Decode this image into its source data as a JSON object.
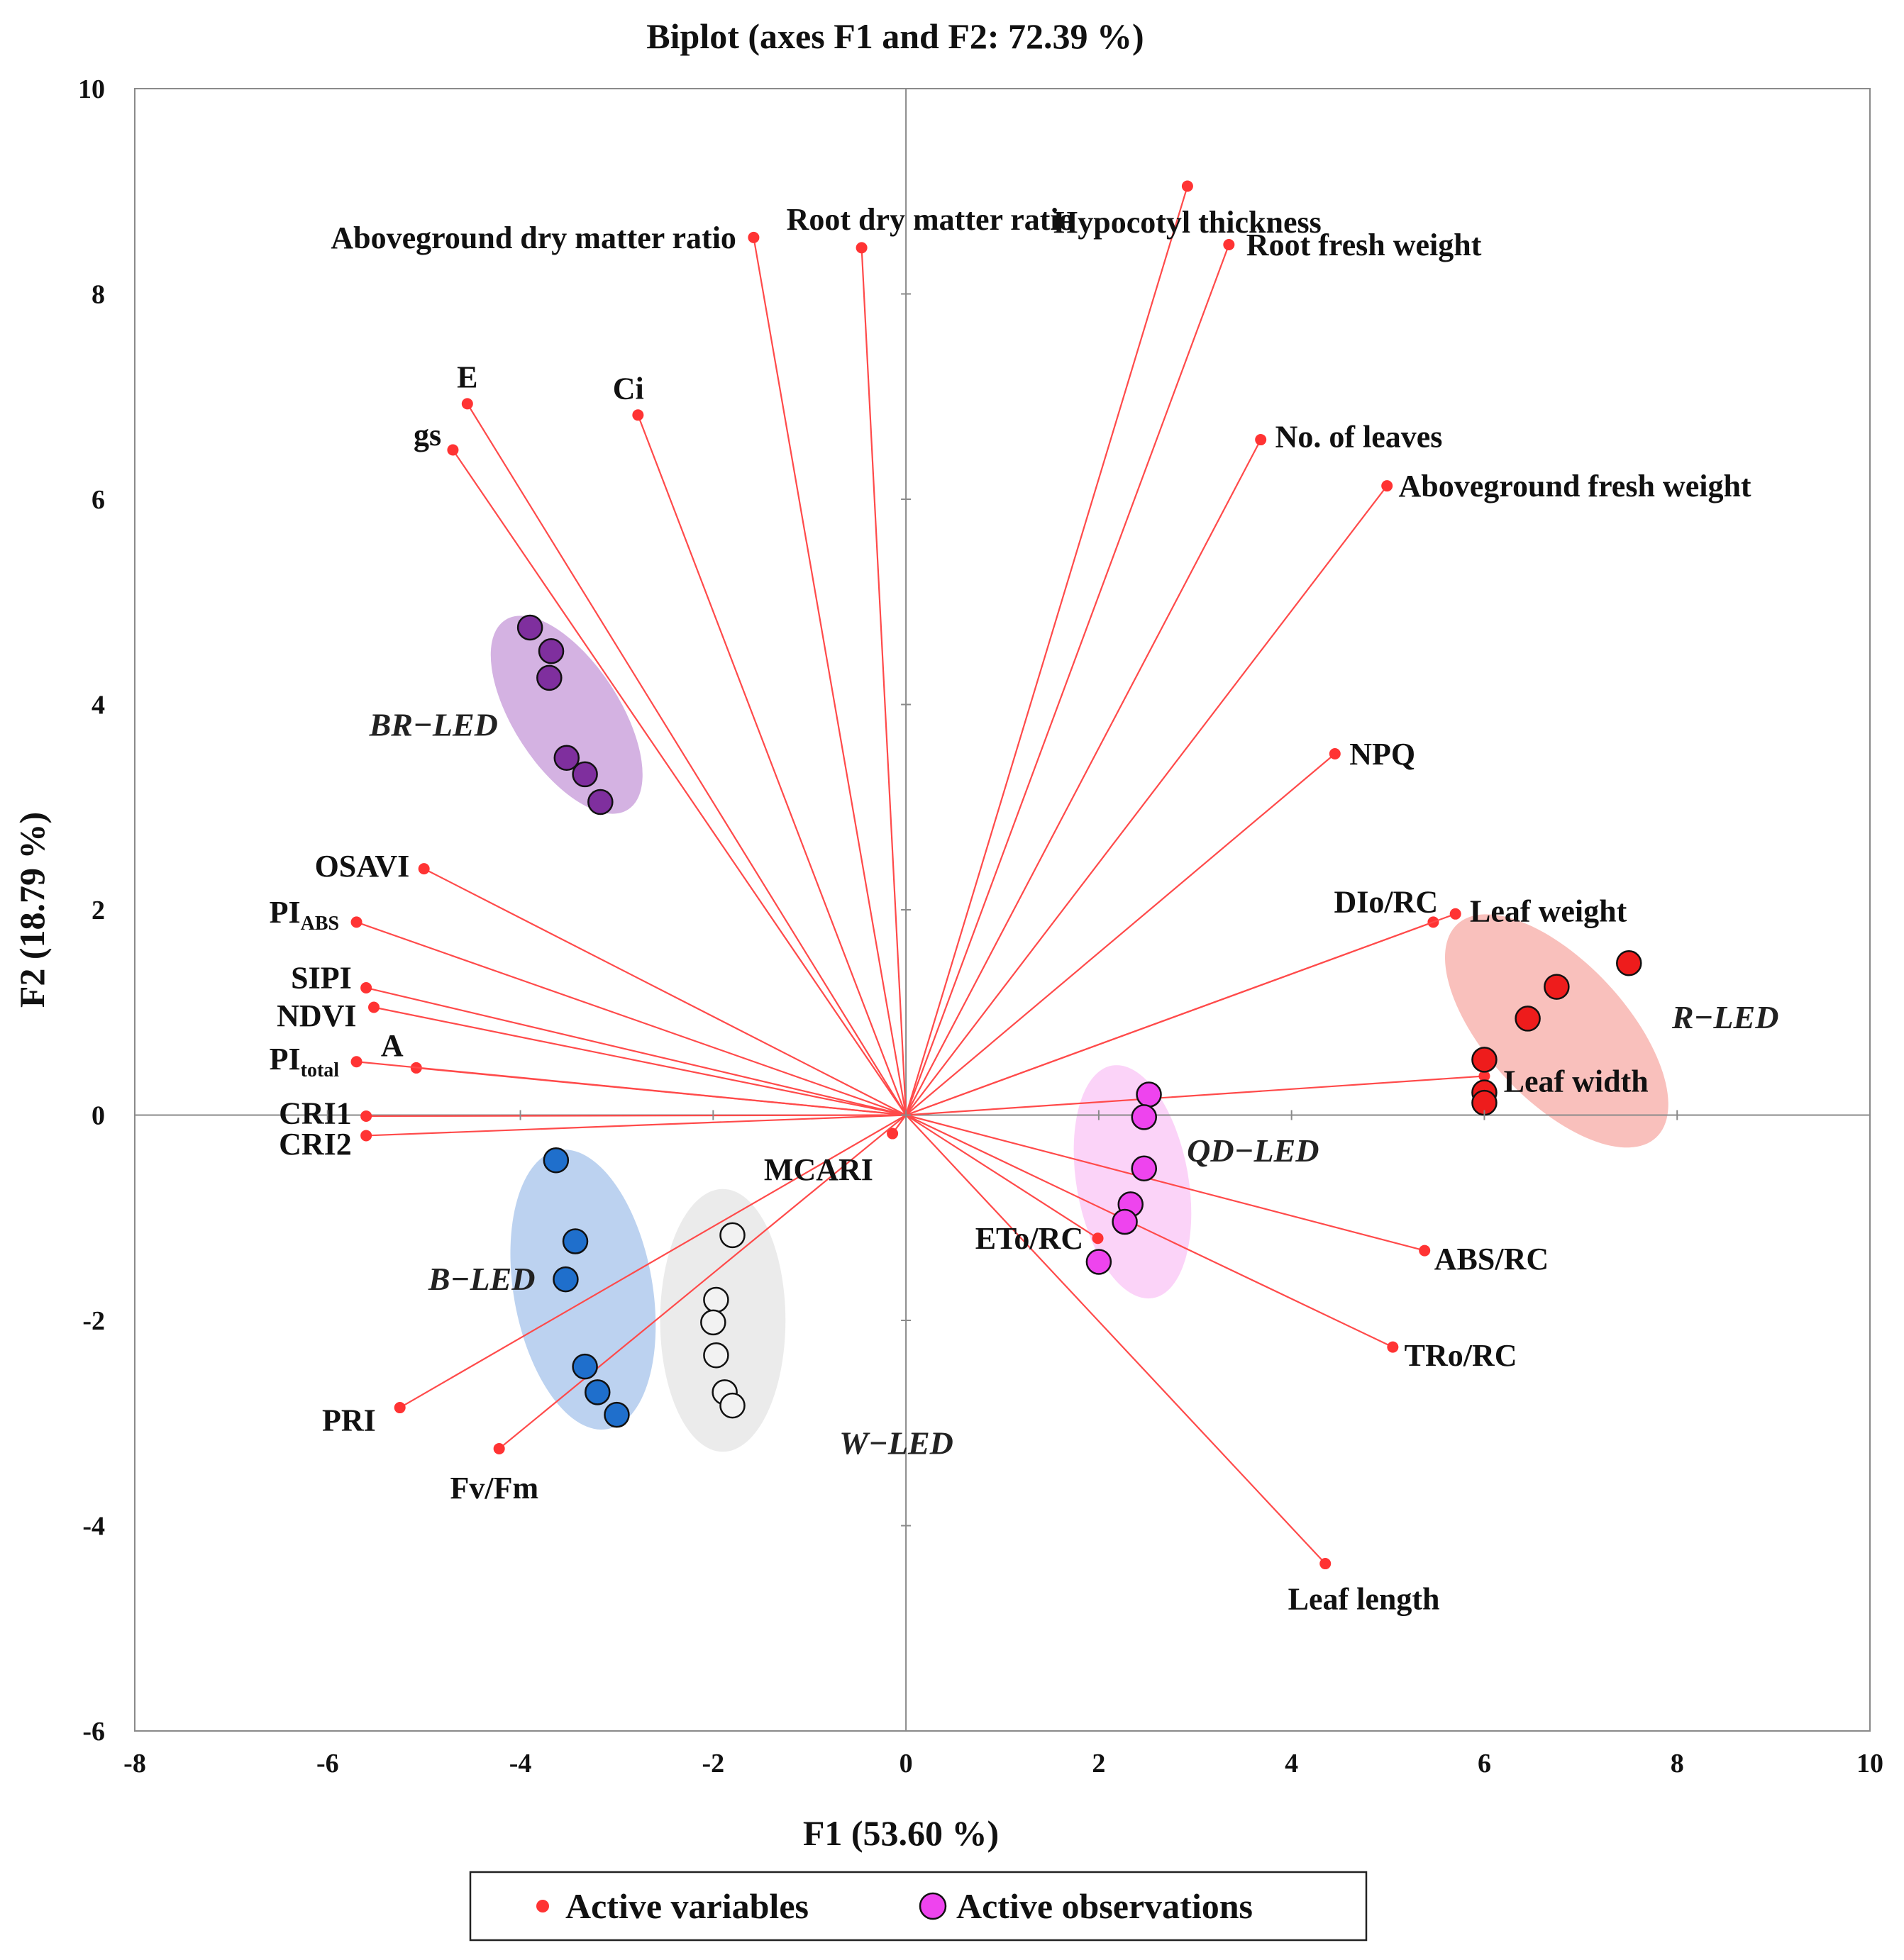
{
  "chart_data": {
    "type": "scatter",
    "subtype": "biplot",
    "title": "Biplot (axes F1 and F2: 72.39 %)",
    "xlabel": "F1 (53.60 %)",
    "ylabel": "F2 (18.79 %)",
    "xlim": [
      -8,
      10
    ],
    "ylim": [
      -6,
      10
    ],
    "xticks": [
      -8,
      -6,
      -4,
      -2,
      0,
      2,
      4,
      6,
      8,
      10
    ],
    "yticks": [
      -6,
      -4,
      -2,
      0,
      2,
      4,
      6,
      8,
      10
    ],
    "xtick_labels": [
      "-8",
      "-6",
      "-4",
      "-2",
      "0",
      "2",
      "4",
      "6",
      "8",
      "10"
    ],
    "ytick_labels": [
      "-6",
      "-4",
      "-2",
      "0",
      "2",
      "4",
      "6",
      "8",
      "10"
    ],
    "legend": {
      "position": "bottom-center",
      "items": [
        {
          "label": "Active variables",
          "marker": "dot",
          "color": "#ff3333"
        },
        {
          "label": "Active observations",
          "marker": "circle",
          "color": "#ee44ee"
        }
      ]
    },
    "variable_color": "#ff3333",
    "variables": [
      {
        "name": "Hypocotyl thickness",
        "x": 2.92,
        "y": 9.05,
        "anchor": "middle",
        "dx": 0,
        "dy": -0.35
      },
      {
        "name": "Root fresh weight",
        "x": 3.35,
        "y": 8.48,
        "anchor": "start",
        "dx": 0.18,
        "dy": 0
      },
      {
        "name": "Root dry matter ratio",
        "x": -0.46,
        "y": 8.45,
        "anchor": "start",
        "dx": -0.78,
        "dy": 0.28
      },
      {
        "name": "Aboveground dry matter ratio",
        "x": -1.58,
        "y": 8.55,
        "anchor": "end",
        "dx": -0.18,
        "dy": 0
      },
      {
        "name": "E",
        "x": -4.55,
        "y": 6.93,
        "anchor": "middle",
        "dx": 0,
        "dy": 0.26
      },
      {
        "name": "Ci",
        "x": -2.78,
        "y": 6.82,
        "anchor": "middle",
        "dx": -0.1,
        "dy": 0.26
      },
      {
        "name": "gs",
        "x": -4.7,
        "y": 6.48,
        "anchor": "end",
        "dx": -0.12,
        "dy": 0.15
      },
      {
        "name": "No. of leaves",
        "x": 3.68,
        "y": 6.58,
        "anchor": "start",
        "dx": 0.15,
        "dy": 0.03
      },
      {
        "name": "Aboveground fresh weight",
        "x": 4.99,
        "y": 6.13,
        "anchor": "start",
        "dx": 0.12,
        "dy": 0
      },
      {
        "name": "NPQ",
        "x": 4.45,
        "y": 3.52,
        "anchor": "start",
        "dx": 0.15,
        "dy": 0
      },
      {
        "name": "OSAVI",
        "x": -5.0,
        "y": 2.4,
        "anchor": "end",
        "dx": -0.15,
        "dy": 0.03
      },
      {
        "name": "PI",
        "sub": "ABS",
        "x": -5.7,
        "y": 1.88,
        "anchor": "end",
        "dx": -0.18,
        "dy": 0.1
      },
      {
        "name": "DIo/RC",
        "x": 5.47,
        "y": 1.88,
        "anchor": "end",
        "dx": 0.05,
        "dy": 0.2
      },
      {
        "name": "Leaf weight",
        "x": 5.7,
        "y": 1.96,
        "anchor": "start",
        "dx": 0.15,
        "dy": 0.03
      },
      {
        "name": "SIPI",
        "x": -5.6,
        "y": 1.24,
        "anchor": "end",
        "dx": -0.15,
        "dy": 0.1
      },
      {
        "name": "NDVI",
        "x": -5.52,
        "y": 1.05,
        "anchor": "end",
        "dx": -0.18,
        "dy": -0.08
      },
      {
        "name": "A",
        "x": -5.08,
        "y": 0.46,
        "anchor": "middle",
        "dx": -0.25,
        "dy": 0.22
      },
      {
        "name": "PI",
        "sub": "total",
        "x": -5.7,
        "y": 0.52,
        "anchor": "end",
        "dx": -0.18,
        "dy": 0.03
      },
      {
        "name": "Leaf width",
        "x": 6.0,
        "y": 0.38,
        "anchor": "start",
        "dx": 0.2,
        "dy": -0.05
      },
      {
        "name": "CRI1",
        "x": -5.6,
        "y": -0.01,
        "anchor": "end",
        "dx": -0.15,
        "dy": 0.03
      },
      {
        "name": "CRI2",
        "x": -5.6,
        "y": -0.2,
        "anchor": "end",
        "dx": -0.15,
        "dy": -0.08
      },
      {
        "name": "MCARI",
        "x": -0.14,
        "y": -0.18,
        "anchor": "end",
        "dx": -0.2,
        "dy": -0.35
      },
      {
        "name": "ETo/RC",
        "x": 1.99,
        "y": -1.2,
        "anchor": "end",
        "dx": -0.15,
        "dy": 0.0
      },
      {
        "name": "ABS/RC",
        "x": 5.38,
        "y": -1.32,
        "anchor": "start",
        "dx": 0.1,
        "dy": -0.08
      },
      {
        "name": "TRo/RC",
        "x": 5.05,
        "y": -2.26,
        "anchor": "start",
        "dx": 0.12,
        "dy": -0.08
      },
      {
        "name": "PRI",
        "x": -5.25,
        "y": -2.85,
        "anchor": "end",
        "dx": -0.25,
        "dy": -0.12
      },
      {
        "name": "Fv/Fm",
        "x": -4.22,
        "y": -3.25,
        "anchor": "middle",
        "dx": -0.05,
        "dy": -0.38
      },
      {
        "name": "Leaf length",
        "x": 4.35,
        "y": -4.37,
        "anchor": "middle",
        "dx": 0.4,
        "dy": -0.34
      }
    ],
    "groups": [
      {
        "label": "BR−LED",
        "color": "#7f2f9e",
        "ellipse_color": "#b87fcf",
        "label_pos": [
          -4.9,
          3.8
        ],
        "ellipse": {
          "cx": -3.52,
          "cy": 3.9,
          "rx": 0.55,
          "ry": 1.1,
          "rot_deg": 33
        },
        "points": [
          [
            -3.9,
            4.75
          ],
          [
            -3.68,
            4.52
          ],
          [
            -3.7,
            4.26
          ],
          [
            -3.52,
            3.48
          ],
          [
            -3.33,
            3.32
          ],
          [
            -3.17,
            3.05
          ]
        ]
      },
      {
        "label": "B−LED",
        "color": "#1f6fcc",
        "ellipse_color": "#8fb4e6",
        "label_pos": [
          -4.4,
          -1.6
        ],
        "ellipse": {
          "cx": -3.35,
          "cy": -1.7,
          "rx": 0.72,
          "ry": 1.38,
          "rot_deg": 10
        },
        "points": [
          [
            -3.63,
            -0.44
          ],
          [
            -3.43,
            -1.23
          ],
          [
            -3.53,
            -1.6
          ],
          [
            -3.33,
            -2.45
          ],
          [
            -3.2,
            -2.7
          ],
          [
            -3.0,
            -2.92
          ]
        ]
      },
      {
        "label": "W−LED",
        "color": "#f2f2f2",
        "ellipse_color": "#dddddd",
        "label_pos": [
          -0.1,
          -3.2
        ],
        "ellipse": {
          "cx": -1.9,
          "cy": -2.0,
          "rx": 0.65,
          "ry": 1.28,
          "rot_deg": 0
        },
        "points": [
          [
            -1.8,
            -1.17
          ],
          [
            -1.97,
            -1.8
          ],
          [
            -2.0,
            -2.02
          ],
          [
            -1.97,
            -2.34
          ],
          [
            -1.88,
            -2.7
          ],
          [
            -1.8,
            -2.83
          ]
        ]
      },
      {
        "label": "QD−LED",
        "color": "#ee44ee",
        "ellipse_color": "#f8b6f4",
        "label_pos": [
          3.6,
          -0.35
        ],
        "ellipse": {
          "cx": 2.35,
          "cy": -0.65,
          "rx": 0.58,
          "ry": 1.15,
          "rot_deg": 10
        },
        "points": [
          [
            2.52,
            0.2
          ],
          [
            2.47,
            -0.02
          ],
          [
            2.47,
            -0.52
          ],
          [
            2.33,
            -0.87
          ],
          [
            2.27,
            -1.04
          ],
          [
            2.0,
            -1.43
          ]
        ]
      },
      {
        "label": "R−LED",
        "color": "#ee1c1c",
        "ellipse_color": "#f5968f",
        "label_pos": [
          8.5,
          0.95
        ],
        "ellipse": {
          "cx": 6.75,
          "cy": 0.82,
          "rx": 0.72,
          "ry": 1.42,
          "rot_deg": 43
        },
        "points": [
          [
            7.5,
            1.48
          ],
          [
            6.75,
            1.25
          ],
          [
            6.45,
            0.94
          ],
          [
            6.0,
            0.54
          ],
          [
            6.0,
            0.22
          ],
          [
            6.0,
            0.12
          ]
        ]
      }
    ]
  }
}
